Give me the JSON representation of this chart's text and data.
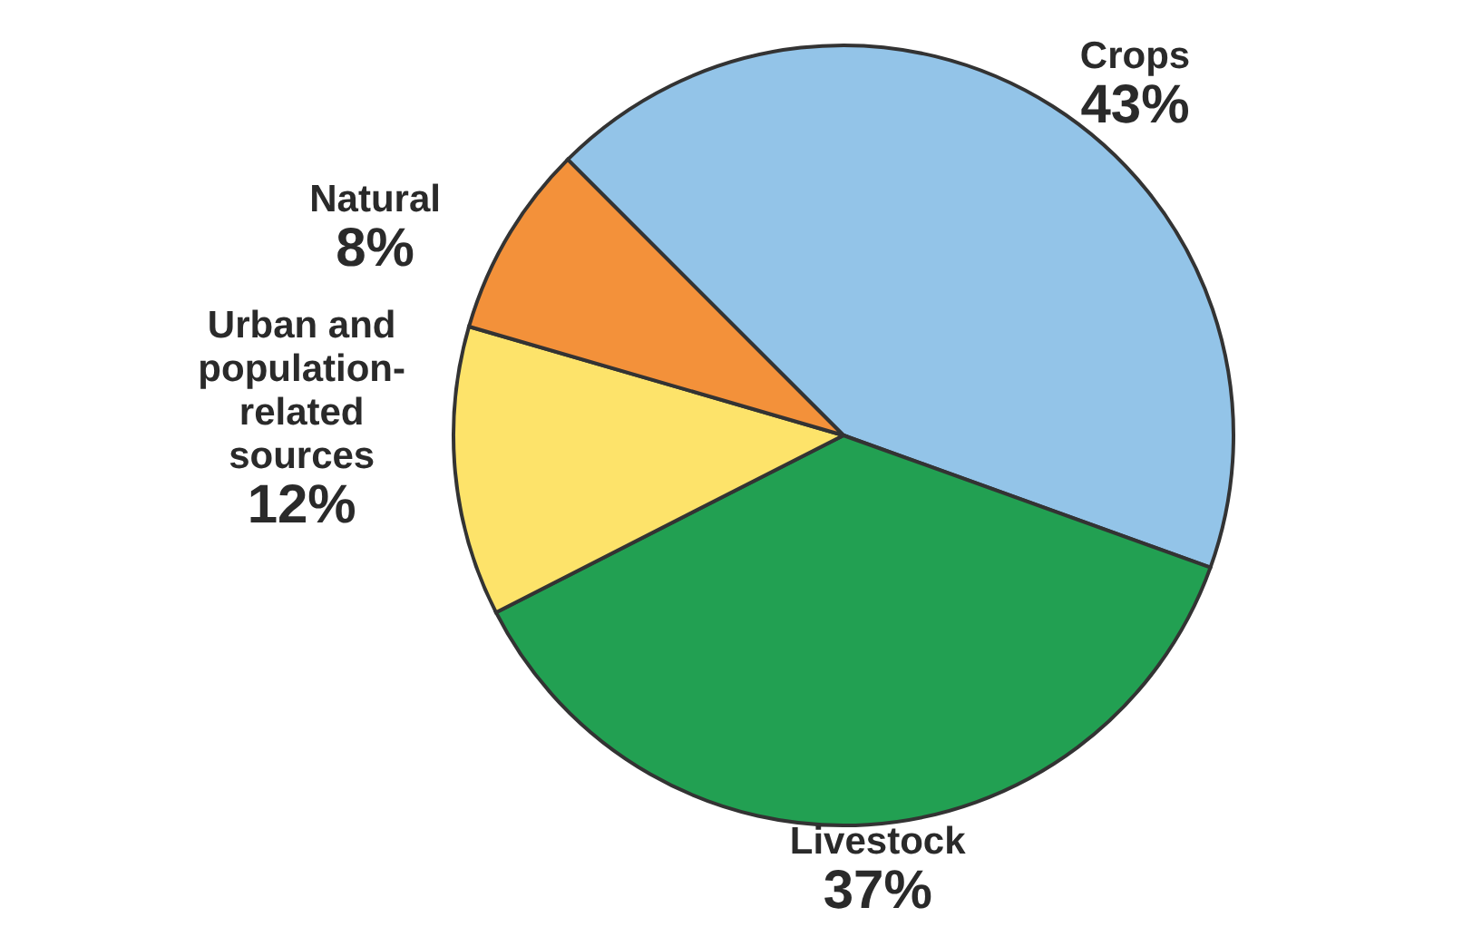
{
  "chart_data": {
    "type": "pie",
    "categories": [
      "Crops",
      "Livestock",
      "Urban and population-related sources",
      "Natural"
    ],
    "values": [
      43,
      37,
      12,
      8
    ],
    "colors": [
      "#93c4e8",
      "#22a052",
      "#fde36a",
      "#f3913a"
    ],
    "value_labels": [
      "43%",
      "37%",
      "12%",
      "8%"
    ]
  }
}
